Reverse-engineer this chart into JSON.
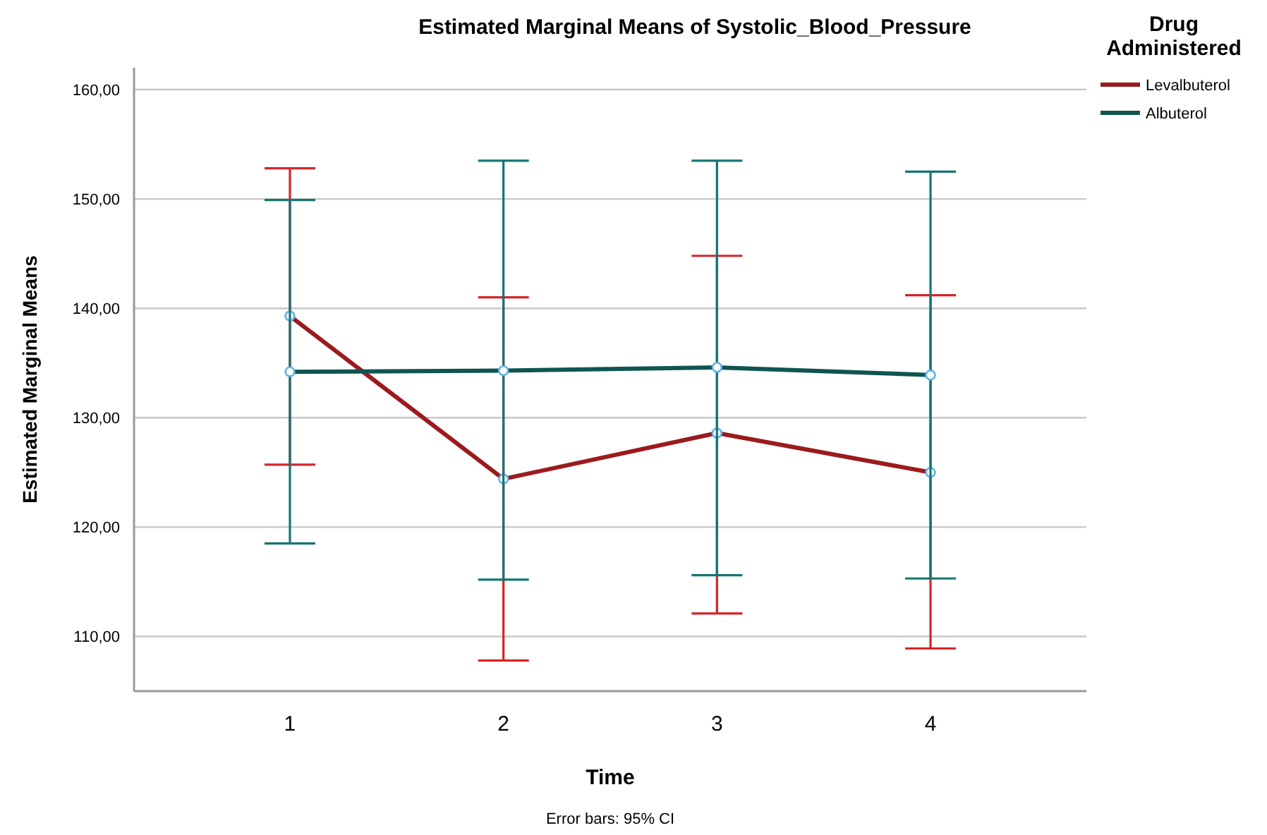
{
  "chart_data": {
    "type": "line",
    "title": "Estimated Marginal Means of Systolic_Blood_Pressure",
    "xlabel": "Time",
    "ylabel": "Estimated Marginal Means",
    "legend_title": "Drug Administered",
    "annotations": [
      "Error bars: 95% CI"
    ],
    "categories": [
      "1",
      "2",
      "3",
      "4"
    ],
    "series": [
      {
        "name": "Levalbuterol",
        "color": "#9b1b1e",
        "values": [
          139.3,
          124.4,
          128.6,
          125.0
        ],
        "errors": [
          [
            125.7,
            152.8
          ],
          [
            107.8,
            141.0
          ],
          [
            112.1,
            144.8
          ],
          [
            108.9,
            141.2
          ]
        ]
      },
      {
        "name": "Albuterol",
        "color": "#0f5552",
        "values": [
          134.2,
          134.3,
          134.6,
          133.9
        ],
        "errors": [
          [
            118.5,
            149.9
          ],
          [
            115.2,
            153.5
          ],
          [
            115.6,
            153.5
          ],
          [
            115.3,
            152.5
          ]
        ]
      }
    ],
    "ylim": [
      105,
      162
    ],
    "yticks": [
      {
        "value": 110,
        "label": "110,00"
      },
      {
        "value": 120,
        "label": "120,00"
      },
      {
        "value": 130,
        "label": "130,00"
      },
      {
        "value": 140,
        "label": "140,00"
      },
      {
        "value": 150,
        "label": "150,00"
      },
      {
        "value": 160,
        "label": "160,00"
      }
    ],
    "grid": "y",
    "legend": "top right",
    "marker": "circle",
    "line_style": "solid"
  }
}
